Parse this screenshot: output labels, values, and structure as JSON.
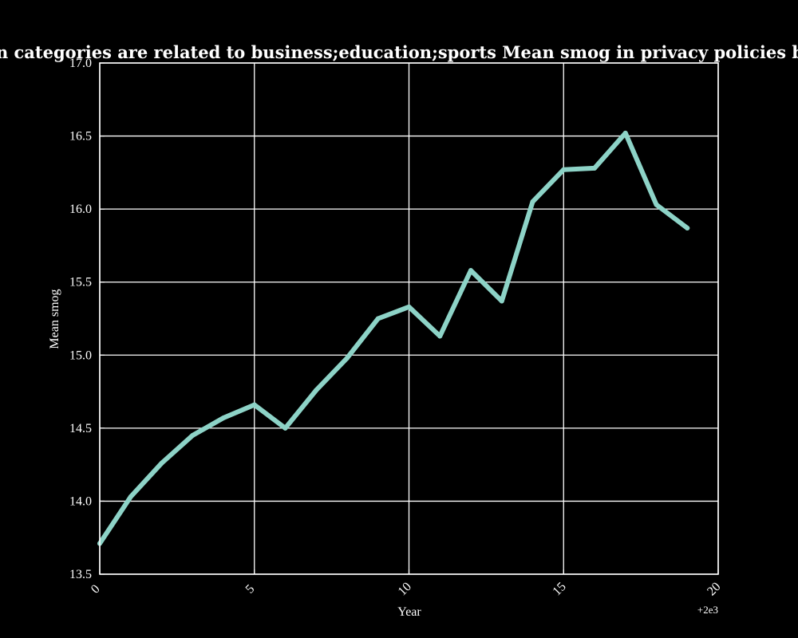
{
  "chart_data": {
    "type": "line",
    "title": "when categories are related to business;education;sports Mean smog in privacy policies by Year",
    "xlabel": "Year",
    "ylabel": "Mean smog",
    "x_offset_label": "+2e3",
    "xlim": [
      0,
      20
    ],
    "ylim": [
      13.5,
      17.0
    ],
    "x_ticks": [
      0,
      5,
      10,
      15,
      20
    ],
    "x_tick_labels": [
      "0",
      "5",
      "10",
      "15",
      "20"
    ],
    "y_ticks": [
      13.5,
      14.0,
      14.5,
      15.0,
      15.5,
      16.0,
      16.5,
      17.0
    ],
    "y_tick_labels": [
      "13.5",
      "14.0",
      "14.5",
      "15.0",
      "15.5",
      "16.0",
      "16.5",
      "17.0"
    ],
    "grid": true,
    "series": [
      {
        "color": "#8dd3c7",
        "x": [
          0,
          1,
          2,
          3,
          4,
          5,
          6,
          7,
          8,
          9,
          10,
          11,
          12,
          13,
          14,
          15,
          16,
          17,
          18,
          19
        ],
        "y": [
          13.71,
          14.03,
          14.26,
          14.45,
          14.57,
          14.66,
          14.5,
          14.76,
          14.98,
          15.25,
          15.33,
          15.13,
          15.58,
          15.37,
          16.05,
          16.27,
          16.28,
          16.52,
          16.03,
          15.87
        ]
      }
    ]
  }
}
